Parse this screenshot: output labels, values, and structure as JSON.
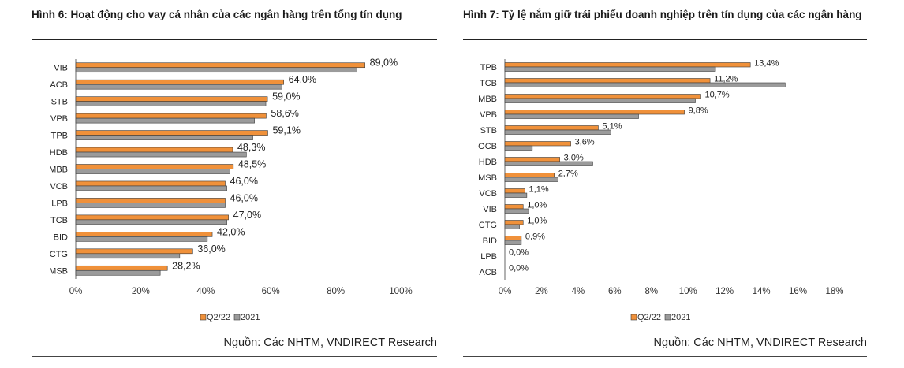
{
  "colors": {
    "q2_22": "#f0913a",
    "y2021": "#9b9b9b",
    "bar_edge": "#3a3a3a"
  },
  "left": {
    "title": "Hình 6: Hoạt động cho vay cá nhân của các ngân hàng trên tổng tín dụng",
    "source": "Nguồn: Các NHTM, VNDIRECT Research"
  },
  "right": {
    "title": "Hình 7: Tỷ lệ nắm giữ trái phiếu doanh nghiệp trên tín dụng của các ngân hàng",
    "source": "Nguồn: Các NHTM, VNDIRECT Research"
  },
  "chart_data": [
    {
      "type": "bar",
      "orientation": "horizontal",
      "title": "Hình 6: Hoạt động cho vay cá nhân của các ngân hàng trên tổng tín dụng",
      "categories": [
        "VIB",
        "ACB",
        "STB",
        "VPB",
        "TPB",
        "HDB",
        "MBB",
        "VCB",
        "LPB",
        "TCB",
        "BID",
        "CTG",
        "MSB"
      ],
      "series": [
        {
          "name": "Q2/22",
          "values": [
            89.0,
            64.0,
            59.0,
            58.6,
            59.1,
            48.3,
            48.5,
            46.0,
            46.0,
            47.0,
            42.0,
            36.0,
            28.2
          ]
        },
        {
          "name": "2021",
          "values": [
            86.5,
            63.5,
            58.5,
            55.0,
            54.5,
            52.5,
            47.5,
            46.5,
            46.0,
            46.5,
            40.5,
            32.0,
            26.0
          ]
        }
      ],
      "data_labels": [
        "89,0%",
        "64,0%",
        "59,0%",
        "58,6%",
        "59,1%",
        "48,3%",
        "48,5%",
        "46,0%",
        "46,0%",
        "47,0%",
        "42,0%",
        "36,0%",
        "28,2%"
      ],
      "xlim": [
        0,
        100
      ],
      "xticks": [
        0,
        20,
        40,
        60,
        80,
        100
      ],
      "xtick_labels": [
        "0%",
        "20%",
        "40%",
        "60%",
        "80%",
        "100%"
      ],
      "legend": [
        "Q2/22",
        "2021"
      ],
      "legend_position": "bottom"
    },
    {
      "type": "bar",
      "orientation": "horizontal",
      "title": "Hình 7: Tỷ lệ nắm giữ trái phiếu doanh nghiệp trên tín dụng của các ngân hàng",
      "categories": [
        "TPB",
        "TCB",
        "MBB",
        "VPB",
        "STB",
        "OCB",
        "HDB",
        "MSB",
        "VCB",
        "VIB",
        "CTG",
        "BID",
        "LPB",
        "ACB"
      ],
      "series": [
        {
          "name": "Q2/22",
          "values": [
            13.4,
            11.2,
            10.7,
            9.8,
            5.1,
            3.6,
            3.0,
            2.7,
            1.1,
            1.0,
            1.0,
            0.9,
            0.0,
            0.0
          ]
        },
        {
          "name": "2021",
          "values": [
            11.5,
            15.3,
            10.4,
            7.3,
            5.8,
            1.5,
            4.8,
            2.9,
            1.2,
            1.3,
            0.8,
            0.9,
            0.0,
            0.0
          ]
        }
      ],
      "data_labels": [
        "13,4%",
        "11,2%",
        "10,7%",
        "9,8%",
        "5,1%",
        "3,6%",
        "3,0%",
        "2,7%",
        "1,1%",
        "1,0%",
        "1,0%",
        "0,9%",
        "0,0%",
        "0,0%"
      ],
      "xlim": [
        0,
        18
      ],
      "xticks": [
        0,
        2,
        4,
        6,
        8,
        10,
        12,
        14,
        16,
        18
      ],
      "xtick_labels": [
        "0%",
        "2%",
        "4%",
        "6%",
        "8%",
        "10%",
        "12%",
        "14%",
        "16%",
        "18%"
      ],
      "legend": [
        "Q2/22",
        "2021"
      ],
      "legend_position": "bottom"
    }
  ]
}
